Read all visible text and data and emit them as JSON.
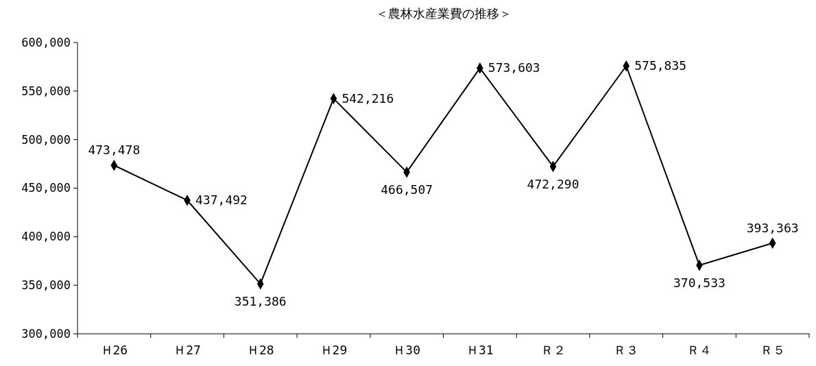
{
  "chart_data": {
    "type": "line",
    "title": "＜農林水産業費の推移＞",
    "categories": [
      "Ｈ26",
      "Ｈ27",
      "Ｈ28",
      "Ｈ29",
      "Ｈ30",
      "Ｈ31",
      "Ｒ２",
      "Ｒ３",
      "Ｒ４",
      "Ｒ５"
    ],
    "series": [
      {
        "color": "#000000",
        "values": [
          473478,
          437492,
          351386,
          542216,
          466507,
          573603,
          472290,
          575835,
          370533,
          393363
        ],
        "value_labels": [
          "473,478",
          "437,492",
          "351,386",
          "542,216",
          "466,507",
          "573,603",
          "472,290",
          "575,835",
          "370,533",
          "393,363"
        ]
      }
    ],
    "ylim": [
      300000,
      600000
    ],
    "yticks": [
      {
        "value": 300000,
        "label": "300,000"
      },
      {
        "value": 350000,
        "label": "350,000"
      },
      {
        "value": 400000,
        "label": "400,000"
      },
      {
        "value": 450000,
        "label": "450,000"
      },
      {
        "value": 500000,
        "label": "500,000"
      },
      {
        "value": 550000,
        "label": "550,000"
      },
      {
        "value": 600000,
        "label": "600,000"
      }
    ],
    "marker": "diamond",
    "line_style": "solid"
  }
}
